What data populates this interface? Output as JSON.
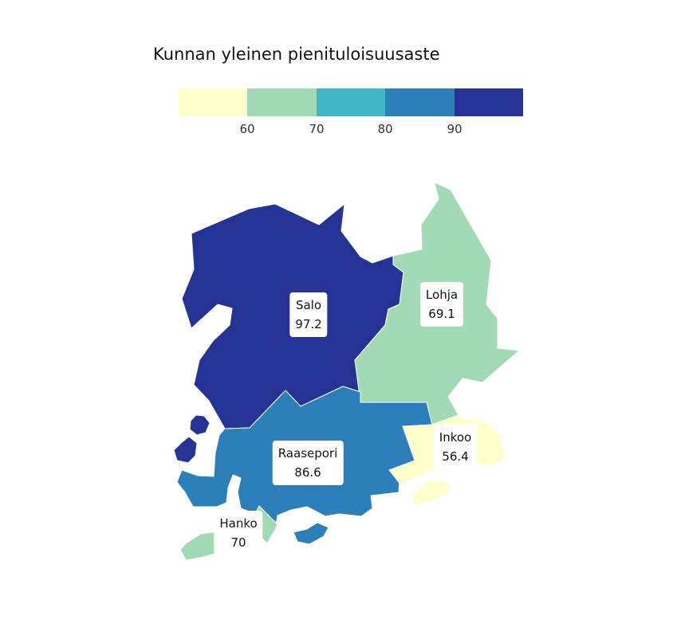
{
  "title": "Kunnan yleinen pienituloisuusaste",
  "legend": {
    "colors": [
      "#ffffcc",
      "#a1dab4",
      "#41b6c4",
      "#2c7fb8",
      "#253494"
    ],
    "ticks": [
      "60",
      "70",
      "80",
      "90"
    ]
  },
  "chart_data": {
    "type": "choropleth",
    "title": "Kunnan yleinen pienituloisuusaste",
    "breaks": [
      60,
      70,
      80,
      90
    ],
    "regions": [
      {
        "name": "Salo",
        "value": "97.2",
        "color": "#253494"
      },
      {
        "name": "Lohja",
        "value": "69.1",
        "color": "#a1dab4"
      },
      {
        "name": "Raasepori",
        "value": "86.6",
        "color": "#2c7fb8"
      },
      {
        "name": "Inkoo",
        "value": "56.4",
        "color": "#ffffcc"
      },
      {
        "name": "Hanko",
        "value": "70",
        "color": "#a1dab4"
      }
    ]
  }
}
